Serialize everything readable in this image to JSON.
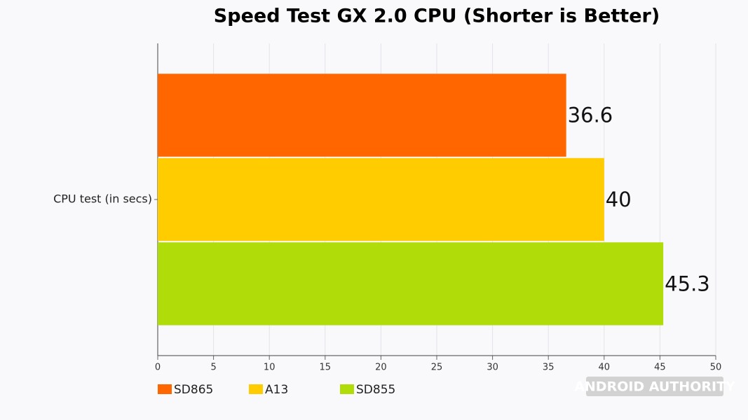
{
  "chart_data": {
    "type": "bar",
    "orientation": "horizontal",
    "title": "Speed Test GX 2.0 CPU (Shorter is Better)",
    "categories": [
      "CPU test (in secs)"
    ],
    "series": [
      {
        "name": "SD865",
        "color": "#ff6600",
        "values": [
          36.6
        ]
      },
      {
        "name": "A13",
        "color": "#ffcc00",
        "values": [
          40
        ]
      },
      {
        "name": "SD855",
        "color": "#b0dc0a",
        "values": [
          45.3
        ]
      }
    ],
    "xlim": [
      0,
      50
    ],
    "xticks": [
      0,
      5,
      10,
      15,
      20,
      25,
      30,
      35,
      40,
      45,
      50
    ],
    "grid": true,
    "legend": "bottom",
    "watermark": "ANDROID AUTHORITY"
  }
}
